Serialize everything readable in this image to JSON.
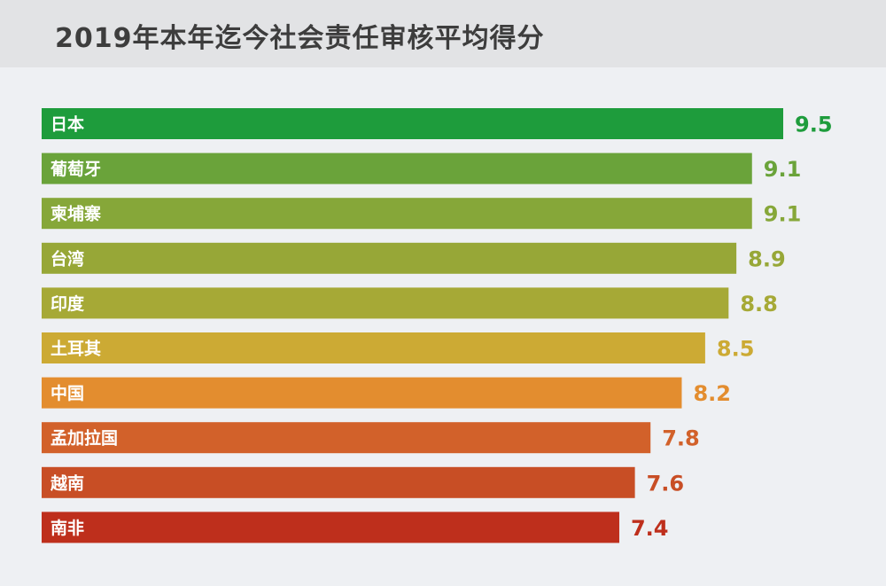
{
  "chart_data": {
    "type": "bar",
    "orientation": "horizontal",
    "title": "2019年本年迄今社会责任审核平均得分",
    "xlabel": "",
    "ylabel": "",
    "categories": [
      "日本",
      "葡萄牙",
      "柬埔寨",
      "台湾",
      "印度",
      "土耳其",
      "中国",
      "孟加拉国",
      "越南",
      "南非"
    ],
    "values": [
      9.5,
      9.1,
      9.1,
      8.9,
      8.8,
      8.5,
      8.2,
      7.8,
      7.6,
      7.4
    ],
    "value_labels": [
      "9.5",
      "9.1",
      "9.1",
      "8.9",
      "8.8",
      "8.5",
      "8.2",
      "7.8",
      "7.6",
      "7.4"
    ],
    "colors": [
      "#1e9c3c",
      "#6aa33a",
      "#86a739",
      "#97a737",
      "#a6a936",
      "#ccaa34",
      "#e38d2f",
      "#d2612a",
      "#c84e25",
      "#be2f1c"
    ],
    "grid": false,
    "legend": "none"
  }
}
